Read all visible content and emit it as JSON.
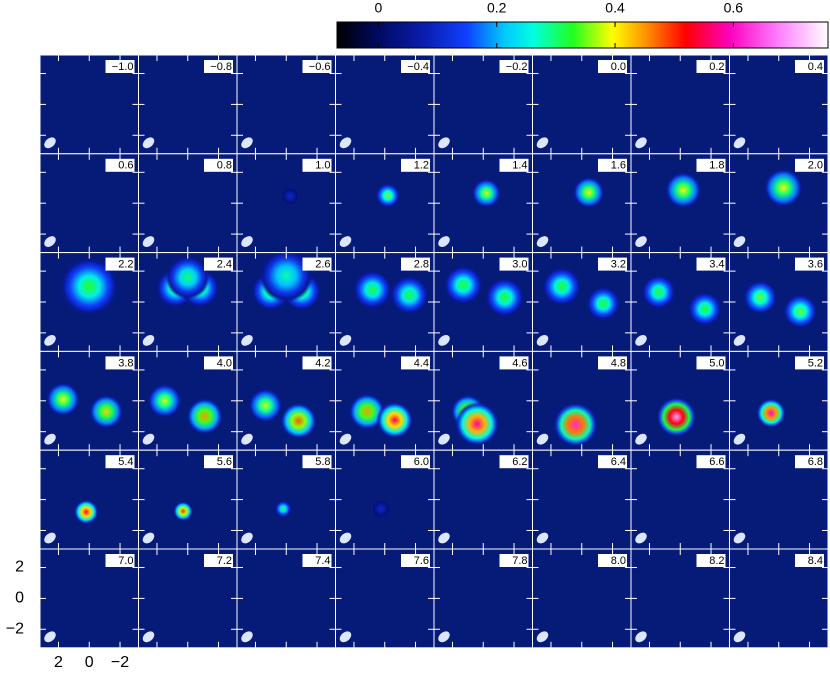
{
  "chart_data": {
    "type": "channel-map",
    "colorbar": {
      "clim": [
        -0.07,
        0.76
      ],
      "ticks": [
        0,
        0.2,
        0.4,
        0.6
      ]
    },
    "xlim": [
      3.2,
      -3.2
    ],
    "ylim": [
      -3.2,
      3.2
    ],
    "xticks": [
      2,
      0,
      {
        "value": -2,
        "label": "−2"
      }
    ],
    "yticks": [
      2,
      0,
      {
        "value": -2,
        "label": "−2"
      }
    ],
    "panels": [
      {
        "label": "−1.0",
        "blobs": []
      },
      {
        "label": "−0.8",
        "blobs": []
      },
      {
        "label": "−0.6",
        "blobs": []
      },
      {
        "label": "−0.4",
        "blobs": []
      },
      {
        "label": "−0.2",
        "blobs": []
      },
      {
        "label": "0.0",
        "blobs": []
      },
      {
        "label": "0.2",
        "blobs": []
      },
      {
        "label": "0.4",
        "blobs": []
      },
      {
        "label": "0.6",
        "blobs": []
      },
      {
        "label": "0.8",
        "blobs": []
      },
      {
        "label": "1.0",
        "blobs": [
          [
            -0.26,
            0.45,
            0.1,
            0.35
          ]
        ]
      },
      {
        "label": "1.2",
        "blobs": [
          [
            -0.2,
            0.5,
            0.35,
            0.5
          ]
        ]
      },
      {
        "label": "1.4",
        "blobs": [
          [
            -0.2,
            0.65,
            0.38,
            0.6
          ]
        ]
      },
      {
        "label": "1.6",
        "blobs": [
          [
            -0.45,
            0.7,
            0.4,
            0.65
          ]
        ]
      },
      {
        "label": "1.8",
        "blobs": [
          [
            -0.2,
            0.85,
            0.4,
            0.75
          ]
        ]
      },
      {
        "label": "2.0",
        "blobs": [
          [
            -0.3,
            1.0,
            0.4,
            0.8
          ]
        ]
      },
      {
        "label": "2.2",
        "blobs": [
          [
            0,
            1.0,
            0.33,
            1.2
          ]
        ]
      },
      {
        "label": "2.4",
        "blobs": [
          [
            0.8,
            0.9,
            0.32,
            0.8
          ],
          [
            -0.8,
            0.9,
            0.32,
            0.8
          ],
          [
            0,
            1.6,
            0.3,
            0.9
          ]
        ]
      },
      {
        "label": "2.6",
        "blobs": [
          [
            1.0,
            0.7,
            0.33,
            0.8
          ],
          [
            -1.0,
            0.7,
            0.33,
            0.8
          ],
          [
            0,
            1.7,
            0.28,
            1.1
          ]
        ]
      },
      {
        "label": "2.8",
        "blobs": [
          [
            0.8,
            0.8,
            0.32,
            0.8
          ],
          [
            -1.6,
            0.45,
            0.32,
            0.8
          ]
        ]
      },
      {
        "label": "3.0",
        "blobs": [
          [
            1.3,
            1.1,
            0.33,
            0.8
          ],
          [
            -1.4,
            0.3,
            0.33,
            0.8
          ]
        ]
      },
      {
        "label": "3.2",
        "blobs": [
          [
            1.3,
            1.0,
            0.33,
            0.8
          ],
          [
            -1.4,
            -0.1,
            0.33,
            0.7
          ]
        ]
      },
      {
        "label": "3.4",
        "blobs": [
          [
            1.4,
            0.65,
            0.33,
            0.7
          ],
          [
            -1.6,
            -0.45,
            0.33,
            0.7
          ]
        ]
      },
      {
        "label": "3.6",
        "blobs": [
          [
            1.2,
            0.3,
            0.35,
            0.7
          ],
          [
            -1.4,
            -0.6,
            0.35,
            0.7
          ]
        ]
      },
      {
        "label": "3.8",
        "blobs": [
          [
            1.7,
            0.1,
            0.4,
            0.7
          ],
          [
            -1.1,
            -0.7,
            0.42,
            0.7
          ]
        ]
      },
      {
        "label": "4.0",
        "blobs": [
          [
            1.5,
            0,
            0.38,
            0.7
          ],
          [
            -1.1,
            -1.0,
            0.45,
            0.75
          ]
        ]
      },
      {
        "label": "4.2",
        "blobs": [
          [
            1.35,
            -0.3,
            0.38,
            0.7
          ],
          [
            -0.8,
            -1.3,
            0.48,
            0.75
          ]
        ]
      },
      {
        "label": "4.4",
        "blobs": [
          [
            1.15,
            -0.7,
            0.45,
            0.75
          ],
          [
            -0.65,
            -1.25,
            0.55,
            0.75
          ]
        ]
      },
      {
        "label": "4.6",
        "blobs": [
          [
            1.0,
            -0.7,
            0.45,
            0.7
          ],
          [
            0.4,
            -1.5,
            0.58,
            0.9
          ]
        ]
      },
      {
        "label": "4.8",
        "blobs": [
          [
            0.4,
            -1.55,
            0.62,
            0.9
          ]
        ]
      },
      {
        "label": "5.0",
        "blobs": [
          [
            0.25,
            -1.05,
            0.7,
            0.8
          ]
        ]
      },
      {
        "label": "5.2",
        "blobs": [
          [
            0.5,
            -0.8,
            0.6,
            0.6
          ]
        ]
      },
      {
        "label": "5.4",
        "blobs": [
          [
            0.2,
            -0.8,
            0.55,
            0.5
          ]
        ]
      },
      {
        "label": "5.6",
        "blobs": [
          [
            0.3,
            -0.75,
            0.5,
            0.4
          ]
        ]
      },
      {
        "label": "5.8",
        "blobs": [
          [
            0.2,
            -0.6,
            0.3,
            0.35
          ]
        ]
      },
      {
        "label": "6.0",
        "blobs": [
          [
            0.25,
            -0.6,
            0.1,
            0.35
          ]
        ]
      },
      {
        "label": "6.2",
        "blobs": []
      },
      {
        "label": "6.4",
        "blobs": []
      },
      {
        "label": "6.6",
        "blobs": []
      },
      {
        "label": "6.8",
        "blobs": []
      },
      {
        "label": "7.0",
        "blobs": []
      },
      {
        "label": "7.2",
        "blobs": []
      },
      {
        "label": "7.4",
        "blobs": []
      },
      {
        "label": "7.6",
        "blobs": []
      },
      {
        "label": "7.8",
        "blobs": []
      },
      {
        "label": "8.0",
        "blobs": []
      },
      {
        "label": "8.2",
        "blobs": []
      },
      {
        "label": "8.4",
        "blobs": []
      }
    ]
  }
}
